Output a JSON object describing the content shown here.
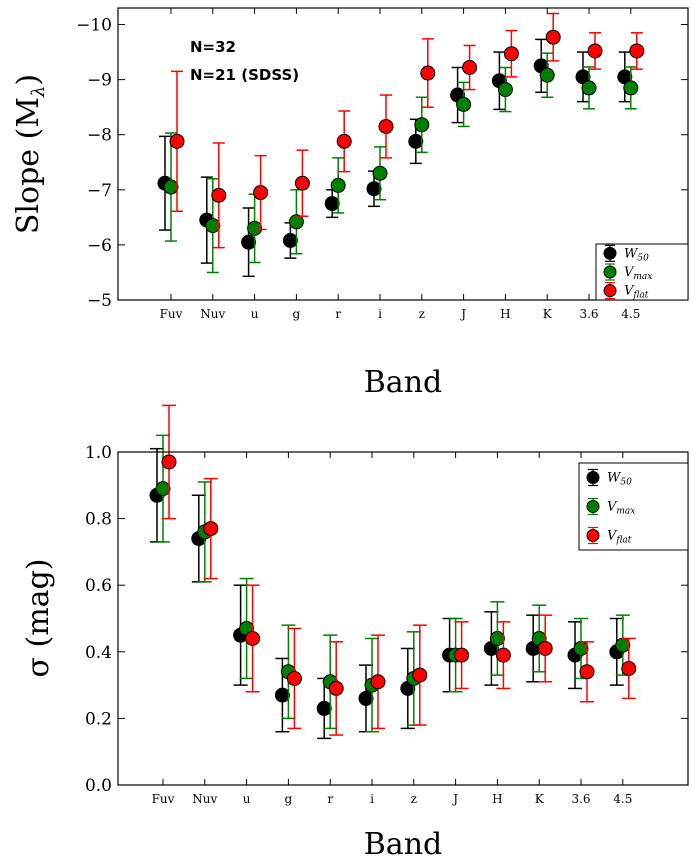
{
  "chart_data": [
    {
      "type": "scatter",
      "xlabel": "Band",
      "ylabel": "Slope (M",
      "ylabel_sub": "λ",
      "ylabel_close": ")",
      "categories": [
        "Fuv",
        "Nuv",
        "u",
        "g",
        "r",
        "i",
        "z",
        "J",
        "H",
        "K",
        "3.6",
        "4.5"
      ],
      "ylim": [
        -5,
        -10.3
      ],
      "yticks": [
        -5,
        -6,
        -7,
        -8,
        -9,
        -10
      ],
      "ytick_labels": [
        "−5",
        "−6",
        "−7",
        "−8",
        "−9",
        "−10"
      ],
      "annotations": [
        "N=32",
        "N=21 (SDSS)"
      ],
      "legend_position": "lower-right",
      "series": [
        {
          "name": "W",
          "name_sub": "50",
          "color": "#000000",
          "values": [
            -7.12,
            -6.45,
            -6.05,
            -6.08,
            -6.75,
            -7.02,
            -7.88,
            -8.72,
            -8.98,
            -9.25,
            -9.05,
            -9.05
          ],
          "err": [
            0.85,
            0.78,
            0.62,
            0.32,
            0.25,
            0.32,
            0.4,
            0.5,
            0.52,
            0.48,
            0.45,
            0.45
          ]
        },
        {
          "name": "V",
          "name_sub": "max",
          "color": "#008000",
          "values": [
            -7.05,
            -6.35,
            -6.3,
            -6.42,
            -7.08,
            -7.3,
            -8.18,
            -8.55,
            -8.82,
            -9.08,
            -8.85,
            -8.85
          ],
          "err": [
            0.98,
            0.85,
            0.62,
            0.58,
            0.5,
            0.48,
            0.5,
            0.4,
            0.4,
            0.4,
            0.38,
            0.38
          ]
        },
        {
          "name": "V",
          "name_sub": "flat",
          "color": "#ff0000",
          "values": [
            -7.88,
            -6.9,
            -6.95,
            -7.12,
            -7.88,
            -8.15,
            -9.12,
            -9.22,
            -9.47,
            -9.77,
            -9.52,
            -9.52
          ],
          "err": [
            1.27,
            0.95,
            0.67,
            0.6,
            0.55,
            0.57,
            0.62,
            0.4,
            0.42,
            0.43,
            0.33,
            0.33
          ]
        }
      ]
    },
    {
      "type": "scatter",
      "xlabel": "Band",
      "ylabel": "σ (mag)",
      "categories": [
        "Fuv",
        "Nuv",
        "u",
        "g",
        "r",
        "i",
        "z",
        "J",
        "H",
        "K",
        "3.6",
        "4.5"
      ],
      "ylim": [
        0.0,
        1.0
      ],
      "yticks": [
        0.0,
        0.2,
        0.4,
        0.6,
        0.8,
        1.0
      ],
      "ytick_labels": [
        "0.0",
        "0.2",
        "0.4",
        "0.6",
        "0.8",
        "1.0"
      ],
      "legend_position": "top-right",
      "series": [
        {
          "name": "W",
          "name_sub": "50",
          "color": "#000000",
          "values": [
            0.87,
            0.74,
            0.45,
            0.27,
            0.23,
            0.26,
            0.29,
            0.39,
            0.41,
            0.41,
            0.39,
            0.4
          ],
          "err": [
            0.14,
            0.13,
            0.15,
            0.11,
            0.09,
            0.1,
            0.12,
            0.11,
            0.11,
            0.1,
            0.1,
            0.1
          ]
        },
        {
          "name": "V",
          "name_sub": "max",
          "color": "#008000",
          "values": [
            0.89,
            0.76,
            0.47,
            0.34,
            0.31,
            0.3,
            0.32,
            0.39,
            0.44,
            0.44,
            0.41,
            0.42
          ],
          "err": [
            0.16,
            0.15,
            0.15,
            0.14,
            0.14,
            0.14,
            0.14,
            0.11,
            0.11,
            0.1,
            0.09,
            0.09
          ]
        },
        {
          "name": "V",
          "name_sub": "flat",
          "color": "#ff0000",
          "values": [
            0.97,
            0.77,
            0.44,
            0.32,
            0.29,
            0.31,
            0.33,
            0.39,
            0.39,
            0.41,
            0.34,
            0.35
          ],
          "err": [
            0.17,
            0.15,
            0.16,
            0.15,
            0.14,
            0.14,
            0.15,
            0.1,
            0.1,
            0.1,
            0.09,
            0.09
          ]
        }
      ]
    }
  ]
}
